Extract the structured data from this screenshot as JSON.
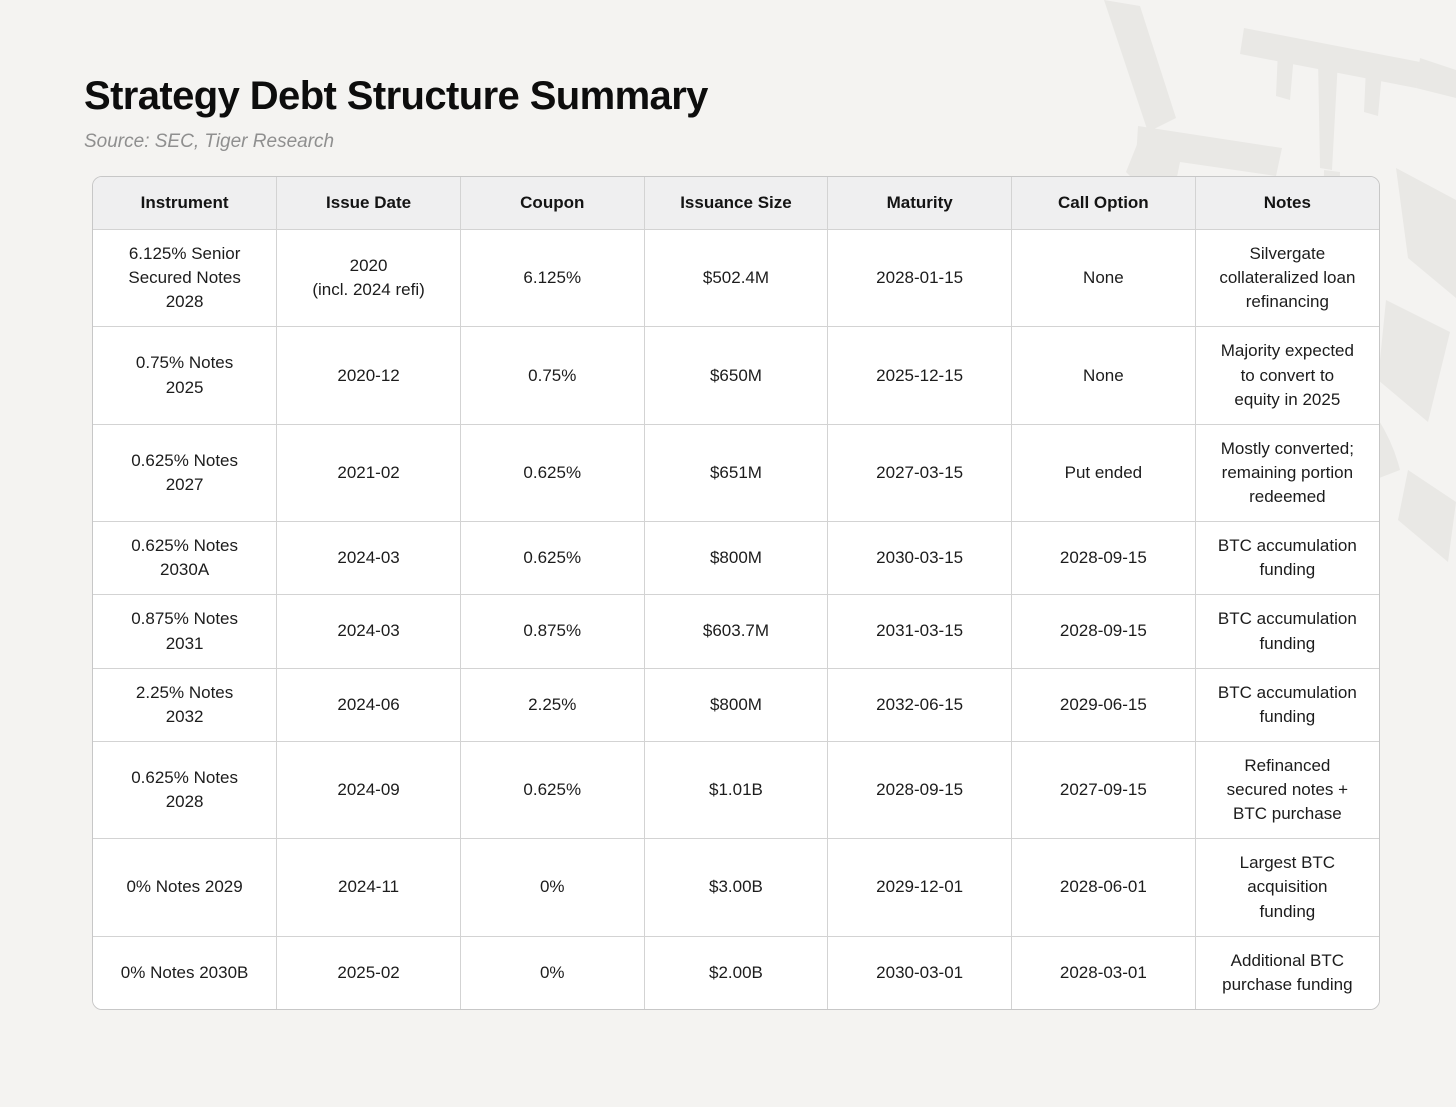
{
  "chart_data": {
    "type": "table",
    "title": "Strategy Debt Structure Summary",
    "source": "Source: SEC, Tiger Research",
    "columns": [
      "Instrument",
      "Issue Date",
      "Coupon",
      "Issuance Size",
      "Maturity",
      "Call Option",
      "Notes"
    ],
    "rows": [
      {
        "instrument": "6.125% Senior\nSecured Notes\n2028",
        "issue_date": "2020\n(incl. 2024 refi)",
        "coupon": "6.125%",
        "issuance_size": "$502.4M",
        "maturity": "2028-01-15",
        "call_option": "None",
        "notes": "Silvergate\ncollateralized loan\nrefinancing"
      },
      {
        "instrument": "0.75% Notes\n2025",
        "issue_date": "2020-12",
        "coupon": "0.75%",
        "issuance_size": "$650M",
        "maturity": "2025-12-15",
        "call_option": "None",
        "notes": "Majority expected\nto convert to\nequity in 2025"
      },
      {
        "instrument": "0.625% Notes\n2027",
        "issue_date": "2021-02",
        "coupon": "0.625%",
        "issuance_size": "$651M",
        "maturity": "2027-03-15",
        "call_option": "Put ended",
        "notes": "Mostly converted;\nremaining portion\nredeemed"
      },
      {
        "instrument": "0.625% Notes\n2030A",
        "issue_date": "2024-03",
        "coupon": "0.625%",
        "issuance_size": "$800M",
        "maturity": "2030-03-15",
        "call_option": "2028-09-15",
        "notes": "BTC accumulation\nfunding"
      },
      {
        "instrument": "0.875% Notes\n2031",
        "issue_date": "2024-03",
        "coupon": "0.875%",
        "issuance_size": "$603.7M",
        "maturity": "2031-03-15",
        "call_option": "2028-09-15",
        "notes": "BTC accumulation\nfunding"
      },
      {
        "instrument": "2.25% Notes\n2032",
        "issue_date": "2024-06",
        "coupon": "2.25%",
        "issuance_size": "$800M",
        "maturity": "2032-06-15",
        "call_option": "2029-06-15",
        "notes": "BTC accumulation\nfunding"
      },
      {
        "instrument": "0.625% Notes\n2028",
        "issue_date": "2024-09",
        "coupon": "0.625%",
        "issuance_size": "$1.01B",
        "maturity": "2028-09-15",
        "call_option": "2027-09-15",
        "notes": "Refinanced\nsecured notes +\nBTC purchase"
      },
      {
        "instrument": "0% Notes 2029",
        "issue_date": "2024-11",
        "coupon": "0%",
        "issuance_size": "$3.00B",
        "maturity": "2029-12-01",
        "call_option": "2028-06-01",
        "notes": "Largest BTC\nacquisition\nfunding"
      },
      {
        "instrument": "0% Notes 2030B",
        "issue_date": "2025-02",
        "coupon": "0%",
        "issuance_size": "$2.00B",
        "maturity": "2030-03-01",
        "call_option": "2028-03-01",
        "notes": "Additional BTC\npurchase funding"
      }
    ]
  }
}
